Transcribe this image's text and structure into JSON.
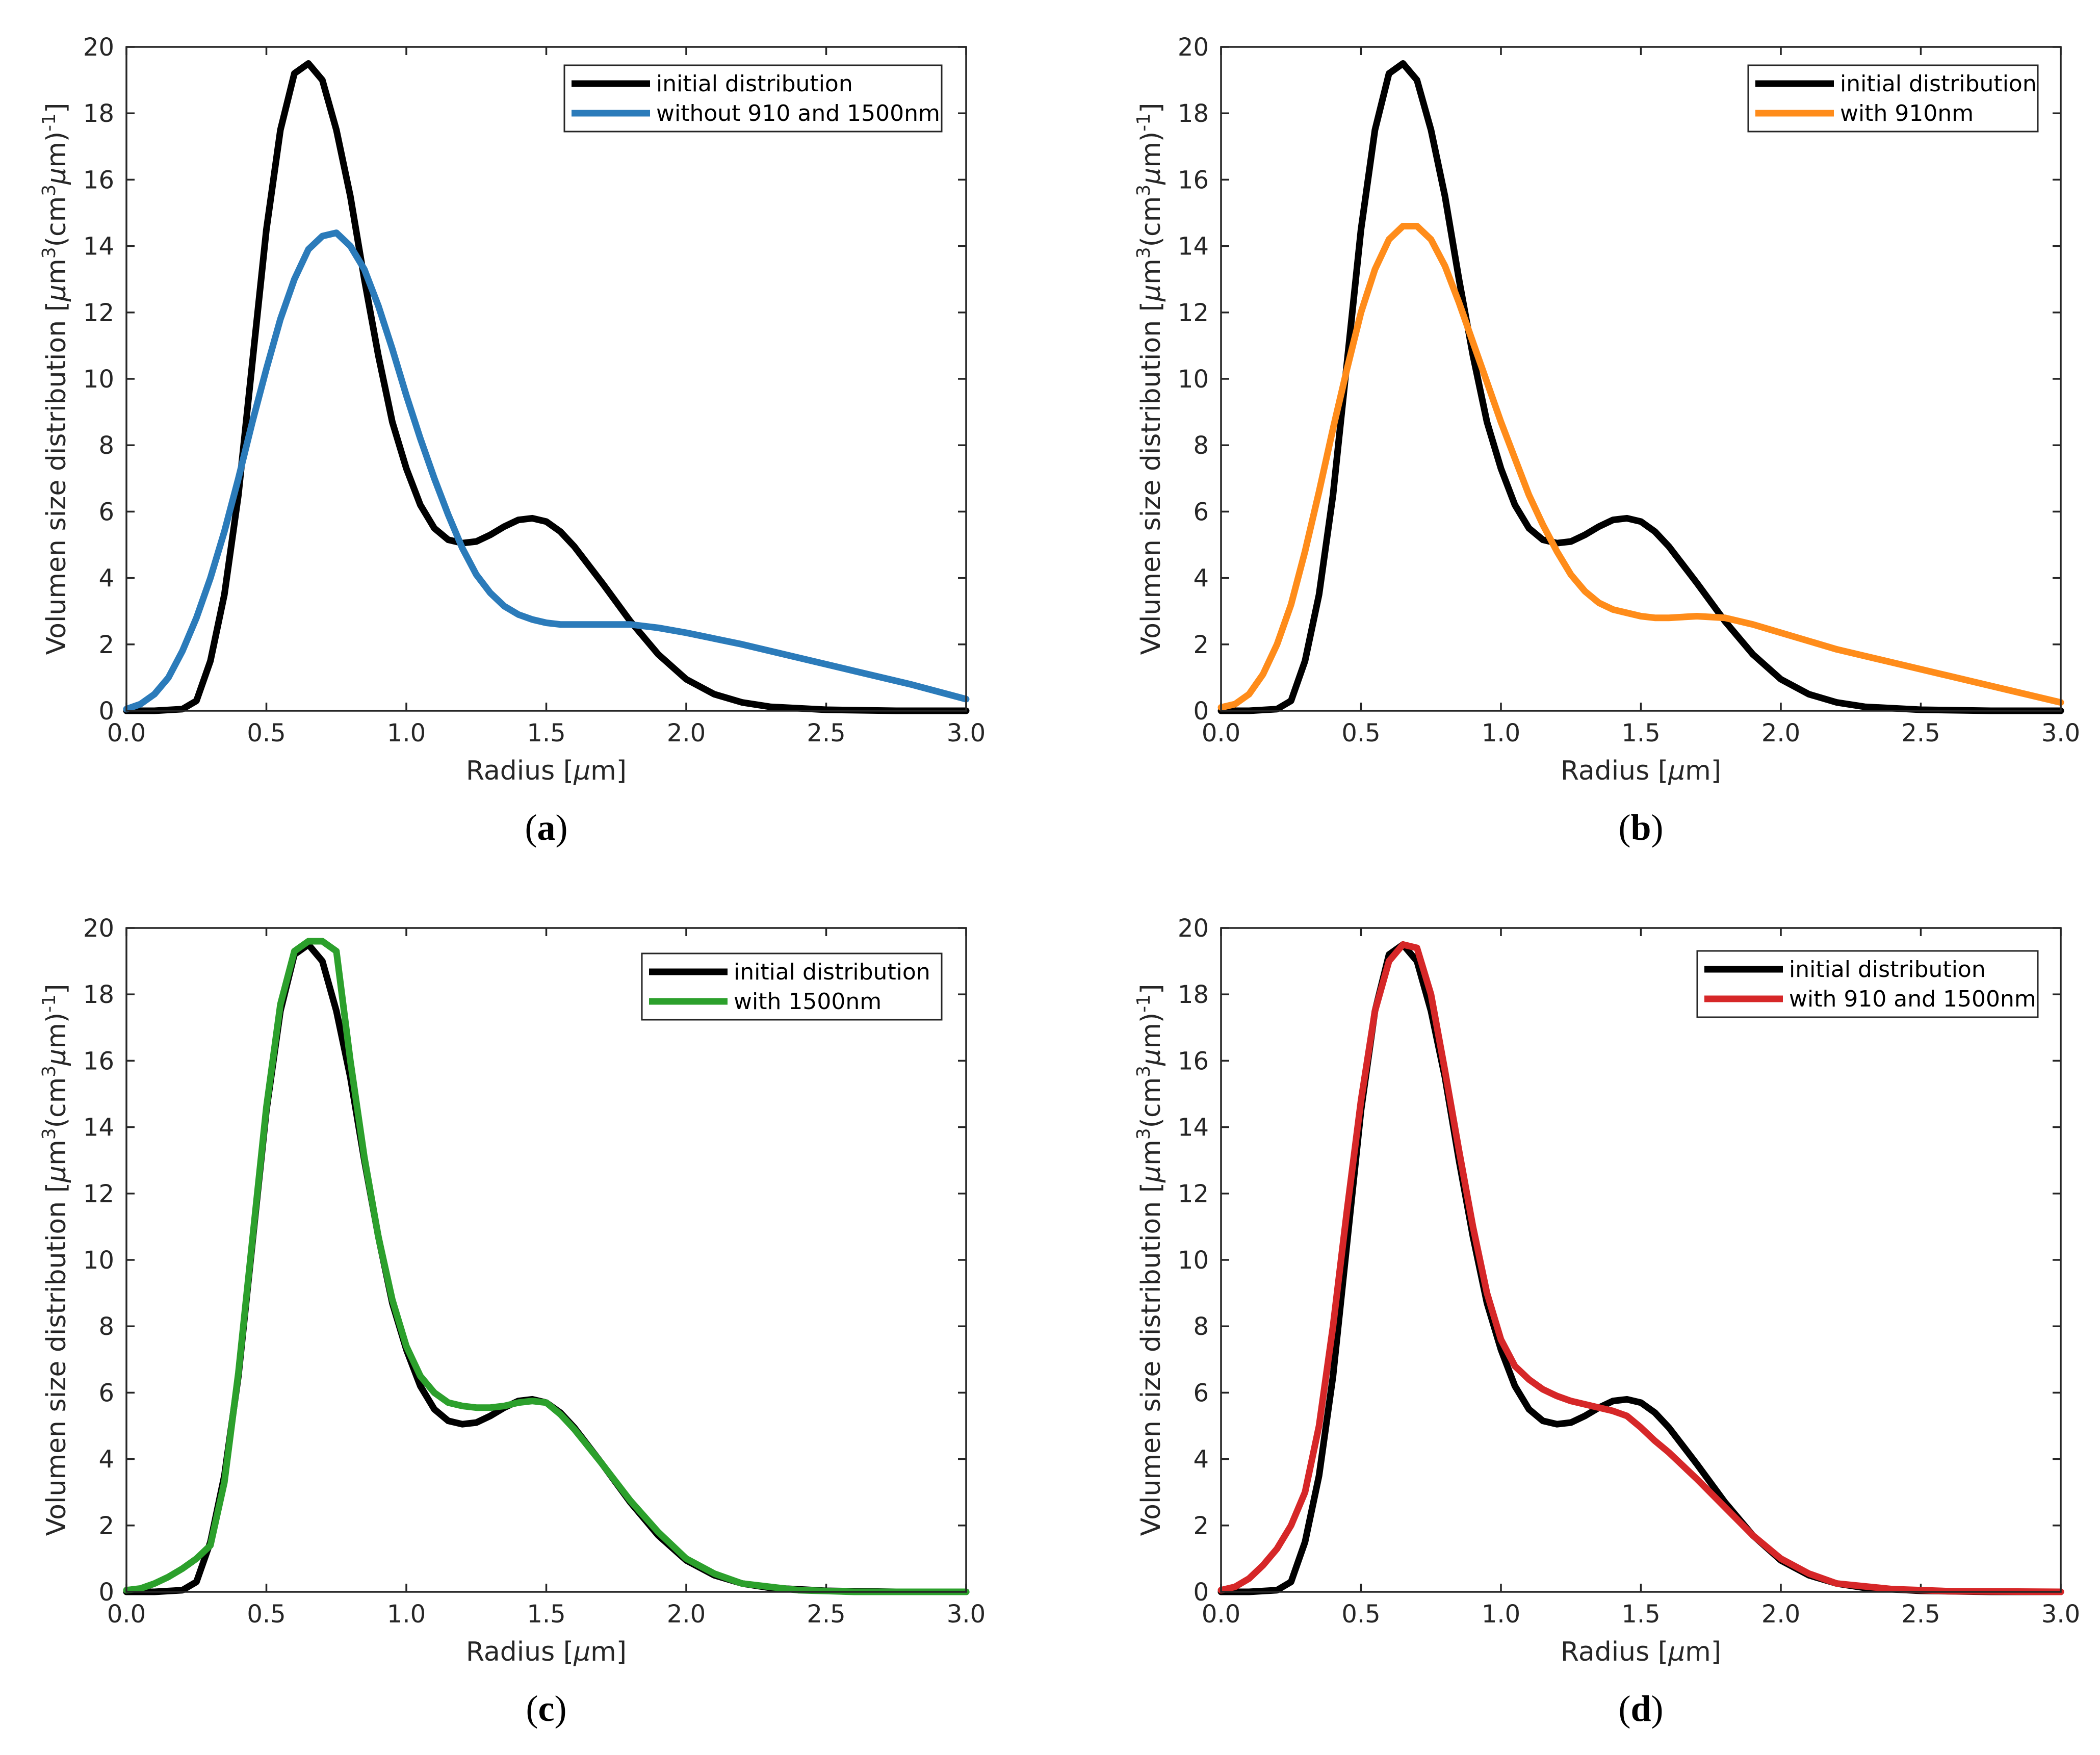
{
  "figure": {
    "y_label_main": "Volumen size distribution [",
    "y_label_mu": "μ",
    "y_label_m": "m",
    "y_label_exp3": "3",
    "y_label_mid": "(cm",
    "y_label_mu2": "μ",
    "y_label_end": "m)",
    "y_label_exp_neg1": "-1",
    "y_label_close": "]",
    "x_label_main": "Radius [",
    "x_label_mu": "μ",
    "x_label_end": "m]"
  },
  "chart_data": [
    {
      "type": "line",
      "panel_label": "(a)",
      "panel_letter": "a",
      "xlim": [
        0,
        3
      ],
      "ylim": [
        0,
        20
      ],
      "xticks": [
        "0.0",
        "0.5",
        "1.0",
        "1.5",
        "2.0",
        "2.5",
        "3.0"
      ],
      "yticks": [
        "0",
        "2",
        "4",
        "6",
        "8",
        "10",
        "12",
        "14",
        "16",
        "18",
        "20"
      ],
      "xlabel": "Radius [μm]",
      "ylabel": "Volumen size distribution [μm3(cm3μm)-1]",
      "legend_position": "top-right",
      "series": [
        {
          "name": "initial distribution",
          "color": "#000000",
          "x": [
            0.0,
            0.1,
            0.2,
            0.25,
            0.3,
            0.35,
            0.4,
            0.45,
            0.5,
            0.55,
            0.6,
            0.65,
            0.7,
            0.75,
            0.8,
            0.85,
            0.9,
            0.95,
            1.0,
            1.05,
            1.1,
            1.15,
            1.2,
            1.25,
            1.3,
            1.35,
            1.4,
            1.45,
            1.5,
            1.55,
            1.6,
            1.7,
            1.8,
            1.9,
            2.0,
            2.1,
            2.2,
            2.3,
            2.5,
            2.75,
            3.0
          ],
          "y": [
            0.0,
            0.0,
            0.05,
            0.3,
            1.5,
            3.5,
            6.5,
            10.5,
            14.5,
            17.5,
            19.2,
            19.5,
            19.0,
            17.5,
            15.5,
            13.0,
            10.7,
            8.7,
            7.3,
            6.2,
            5.5,
            5.15,
            5.05,
            5.1,
            5.3,
            5.55,
            5.75,
            5.8,
            5.7,
            5.4,
            4.95,
            3.85,
            2.7,
            1.7,
            0.95,
            0.5,
            0.25,
            0.12,
            0.03,
            0.0,
            0.0
          ]
        },
        {
          "name": "without 910 and 1500nm",
          "color": "#2b7bba",
          "x": [
            0.0,
            0.05,
            0.1,
            0.15,
            0.2,
            0.25,
            0.3,
            0.35,
            0.4,
            0.45,
            0.5,
            0.55,
            0.6,
            0.65,
            0.7,
            0.75,
            0.8,
            0.85,
            0.9,
            0.95,
            1.0,
            1.05,
            1.1,
            1.15,
            1.2,
            1.25,
            1.3,
            1.35,
            1.4,
            1.45,
            1.5,
            1.55,
            1.6,
            1.7,
            1.8,
            1.9,
            2.0,
            2.2,
            2.4,
            2.6,
            2.8,
            3.0
          ],
          "y": [
            0.05,
            0.2,
            0.5,
            1.0,
            1.8,
            2.8,
            4.0,
            5.4,
            7.0,
            8.7,
            10.3,
            11.8,
            13.0,
            13.9,
            14.3,
            14.4,
            14.0,
            13.3,
            12.2,
            10.9,
            9.5,
            8.2,
            7.0,
            5.9,
            4.9,
            4.1,
            3.55,
            3.15,
            2.9,
            2.75,
            2.65,
            2.6,
            2.6,
            2.6,
            2.6,
            2.5,
            2.35,
            2.0,
            1.6,
            1.2,
            0.8,
            0.35
          ]
        }
      ]
    },
    {
      "type": "line",
      "panel_label": "(b)",
      "panel_letter": "b",
      "xlim": [
        0,
        3
      ],
      "ylim": [
        0,
        20
      ],
      "xticks": [
        "0.0",
        "0.5",
        "1.0",
        "1.5",
        "2.0",
        "2.5",
        "3.0"
      ],
      "yticks": [
        "0",
        "2",
        "4",
        "6",
        "8",
        "10",
        "12",
        "14",
        "16",
        "18",
        "20"
      ],
      "xlabel": "Radius [μm]",
      "ylabel": "Volumen size distribution [μm3(cm3μm)-1]",
      "legend_position": "top-right",
      "series": [
        {
          "name": "initial distribution",
          "color": "#000000",
          "x": [
            0.0,
            0.1,
            0.2,
            0.25,
            0.3,
            0.35,
            0.4,
            0.45,
            0.5,
            0.55,
            0.6,
            0.65,
            0.7,
            0.75,
            0.8,
            0.85,
            0.9,
            0.95,
            1.0,
            1.05,
            1.1,
            1.15,
            1.2,
            1.25,
            1.3,
            1.35,
            1.4,
            1.45,
            1.5,
            1.55,
            1.6,
            1.7,
            1.8,
            1.9,
            2.0,
            2.1,
            2.2,
            2.3,
            2.5,
            2.75,
            3.0
          ],
          "y": [
            0.0,
            0.0,
            0.05,
            0.3,
            1.5,
            3.5,
            6.5,
            10.5,
            14.5,
            17.5,
            19.2,
            19.5,
            19.0,
            17.5,
            15.5,
            13.0,
            10.7,
            8.7,
            7.3,
            6.2,
            5.5,
            5.15,
            5.05,
            5.1,
            5.3,
            5.55,
            5.75,
            5.8,
            5.7,
            5.4,
            4.95,
            3.85,
            2.7,
            1.7,
            0.95,
            0.5,
            0.25,
            0.12,
            0.03,
            0.0,
            0.0
          ]
        },
        {
          "name": "with 910nm",
          "color": "#ff8c1a",
          "x": [
            0.0,
            0.05,
            0.1,
            0.15,
            0.2,
            0.25,
            0.3,
            0.35,
            0.4,
            0.45,
            0.5,
            0.55,
            0.6,
            0.65,
            0.7,
            0.75,
            0.8,
            0.85,
            0.9,
            0.95,
            1.0,
            1.05,
            1.1,
            1.15,
            1.2,
            1.25,
            1.3,
            1.35,
            1.4,
            1.45,
            1.5,
            1.55,
            1.6,
            1.7,
            1.8,
            1.9,
            2.0,
            2.2,
            2.4,
            2.6,
            2.8,
            3.0
          ],
          "y": [
            0.1,
            0.2,
            0.5,
            1.1,
            2.0,
            3.2,
            4.8,
            6.6,
            8.5,
            10.3,
            12.0,
            13.3,
            14.2,
            14.6,
            14.6,
            14.2,
            13.4,
            12.3,
            11.1,
            9.9,
            8.7,
            7.6,
            6.5,
            5.6,
            4.8,
            4.1,
            3.6,
            3.25,
            3.05,
            2.95,
            2.85,
            2.8,
            2.8,
            2.85,
            2.8,
            2.6,
            2.35,
            1.85,
            1.45,
            1.05,
            0.65,
            0.25
          ]
        }
      ]
    },
    {
      "type": "line",
      "panel_label": "(c)",
      "panel_letter": "c",
      "xlim": [
        0,
        3
      ],
      "ylim": [
        0,
        20
      ],
      "xticks": [
        "0.0",
        "0.5",
        "1.0",
        "1.5",
        "2.0",
        "2.5",
        "3.0"
      ],
      "yticks": [
        "0",
        "2",
        "4",
        "6",
        "8",
        "10",
        "12",
        "14",
        "16",
        "18",
        "20"
      ],
      "xlabel": "Radius [μm]",
      "ylabel": "Volumen size distribution [μm3(cm3μm)-1]",
      "legend_position": "top-right",
      "series": [
        {
          "name": "initial distribution",
          "color": "#000000",
          "x": [
            0.0,
            0.1,
            0.2,
            0.25,
            0.3,
            0.35,
            0.4,
            0.45,
            0.5,
            0.55,
            0.6,
            0.65,
            0.7,
            0.75,
            0.8,
            0.85,
            0.9,
            0.95,
            1.0,
            1.05,
            1.1,
            1.15,
            1.2,
            1.25,
            1.3,
            1.35,
            1.4,
            1.45,
            1.5,
            1.55,
            1.6,
            1.7,
            1.8,
            1.9,
            2.0,
            2.1,
            2.2,
            2.3,
            2.5,
            2.75,
            3.0
          ],
          "y": [
            0.0,
            0.0,
            0.05,
            0.3,
            1.5,
            3.5,
            6.5,
            10.5,
            14.5,
            17.5,
            19.2,
            19.5,
            19.0,
            17.5,
            15.5,
            13.0,
            10.7,
            8.7,
            7.3,
            6.2,
            5.5,
            5.15,
            5.05,
            5.1,
            5.3,
            5.55,
            5.75,
            5.8,
            5.7,
            5.4,
            4.95,
            3.85,
            2.7,
            1.7,
            0.95,
            0.5,
            0.25,
            0.12,
            0.03,
            0.0,
            0.0
          ]
        },
        {
          "name": "with 1500nm",
          "color": "#2ca02c",
          "x": [
            0.0,
            0.05,
            0.1,
            0.15,
            0.2,
            0.25,
            0.3,
            0.35,
            0.4,
            0.45,
            0.5,
            0.55,
            0.6,
            0.65,
            0.7,
            0.75,
            0.8,
            0.85,
            0.9,
            0.95,
            1.0,
            1.05,
            1.1,
            1.15,
            1.2,
            1.25,
            1.3,
            1.35,
            1.4,
            1.45,
            1.5,
            1.55,
            1.6,
            1.7,
            1.8,
            1.9,
            2.0,
            2.1,
            2.2,
            2.4,
            2.6,
            3.0
          ],
          "y": [
            0.05,
            0.1,
            0.25,
            0.45,
            0.7,
            1.0,
            1.4,
            3.3,
            6.6,
            10.6,
            14.6,
            17.7,
            19.3,
            19.6,
            19.6,
            19.3,
            16.0,
            13.1,
            10.7,
            8.8,
            7.4,
            6.5,
            6.0,
            5.7,
            5.6,
            5.55,
            5.55,
            5.6,
            5.7,
            5.75,
            5.7,
            5.35,
            4.9,
            3.85,
            2.75,
            1.8,
            1.0,
            0.55,
            0.25,
            0.05,
            0.0,
            0.0
          ]
        }
      ]
    },
    {
      "type": "line",
      "panel_label": "(d)",
      "panel_letter": "d",
      "xlim": [
        0,
        3
      ],
      "ylim": [
        0,
        20
      ],
      "xticks": [
        "0.0",
        "0.5",
        "1.0",
        "1.5",
        "2.0",
        "2.5",
        "3.0"
      ],
      "yticks": [
        "0",
        "2",
        "4",
        "6",
        "8",
        "10",
        "12",
        "14",
        "16",
        "18",
        "20"
      ],
      "xlabel": "Radius [μm]",
      "ylabel": "Volumen size distribution [μm3(cm3μm)-1]",
      "legend_position": "top-right",
      "series": [
        {
          "name": "initial distribution",
          "color": "#000000",
          "x": [
            0.0,
            0.1,
            0.2,
            0.25,
            0.3,
            0.35,
            0.4,
            0.45,
            0.5,
            0.55,
            0.6,
            0.65,
            0.7,
            0.75,
            0.8,
            0.85,
            0.9,
            0.95,
            1.0,
            1.05,
            1.1,
            1.15,
            1.2,
            1.25,
            1.3,
            1.35,
            1.4,
            1.45,
            1.5,
            1.55,
            1.6,
            1.7,
            1.8,
            1.9,
            2.0,
            2.1,
            2.2,
            2.3,
            2.5,
            2.75,
            3.0
          ],
          "y": [
            0.0,
            0.0,
            0.05,
            0.3,
            1.5,
            3.5,
            6.5,
            10.5,
            14.5,
            17.5,
            19.2,
            19.5,
            19.0,
            17.5,
            15.5,
            13.0,
            10.7,
            8.7,
            7.3,
            6.2,
            5.5,
            5.15,
            5.05,
            5.1,
            5.3,
            5.55,
            5.75,
            5.8,
            5.7,
            5.4,
            4.95,
            3.85,
            2.7,
            1.7,
            0.95,
            0.5,
            0.25,
            0.12,
            0.03,
            0.0,
            0.0
          ]
        },
        {
          "name": "with 910 and 1500nm",
          "color": "#d62728",
          "x": [
            0.0,
            0.05,
            0.1,
            0.15,
            0.2,
            0.25,
            0.3,
            0.35,
            0.4,
            0.45,
            0.5,
            0.55,
            0.6,
            0.65,
            0.7,
            0.75,
            0.8,
            0.85,
            0.9,
            0.95,
            1.0,
            1.05,
            1.1,
            1.15,
            1.2,
            1.25,
            1.3,
            1.35,
            1.4,
            1.45,
            1.5,
            1.55,
            1.6,
            1.7,
            1.8,
            1.9,
            2.0,
            2.1,
            2.2,
            2.4,
            2.6,
            3.0
          ],
          "y": [
            0.05,
            0.15,
            0.4,
            0.8,
            1.3,
            2.0,
            3.0,
            5.0,
            8.0,
            11.5,
            14.8,
            17.5,
            19.0,
            19.5,
            19.4,
            18.0,
            15.7,
            13.3,
            11.0,
            9.0,
            7.6,
            6.8,
            6.4,
            6.1,
            5.9,
            5.75,
            5.65,
            5.55,
            5.45,
            5.3,
            4.95,
            4.55,
            4.2,
            3.4,
            2.55,
            1.7,
            1.0,
            0.55,
            0.25,
            0.08,
            0.02,
            0.0
          ]
        }
      ]
    }
  ]
}
